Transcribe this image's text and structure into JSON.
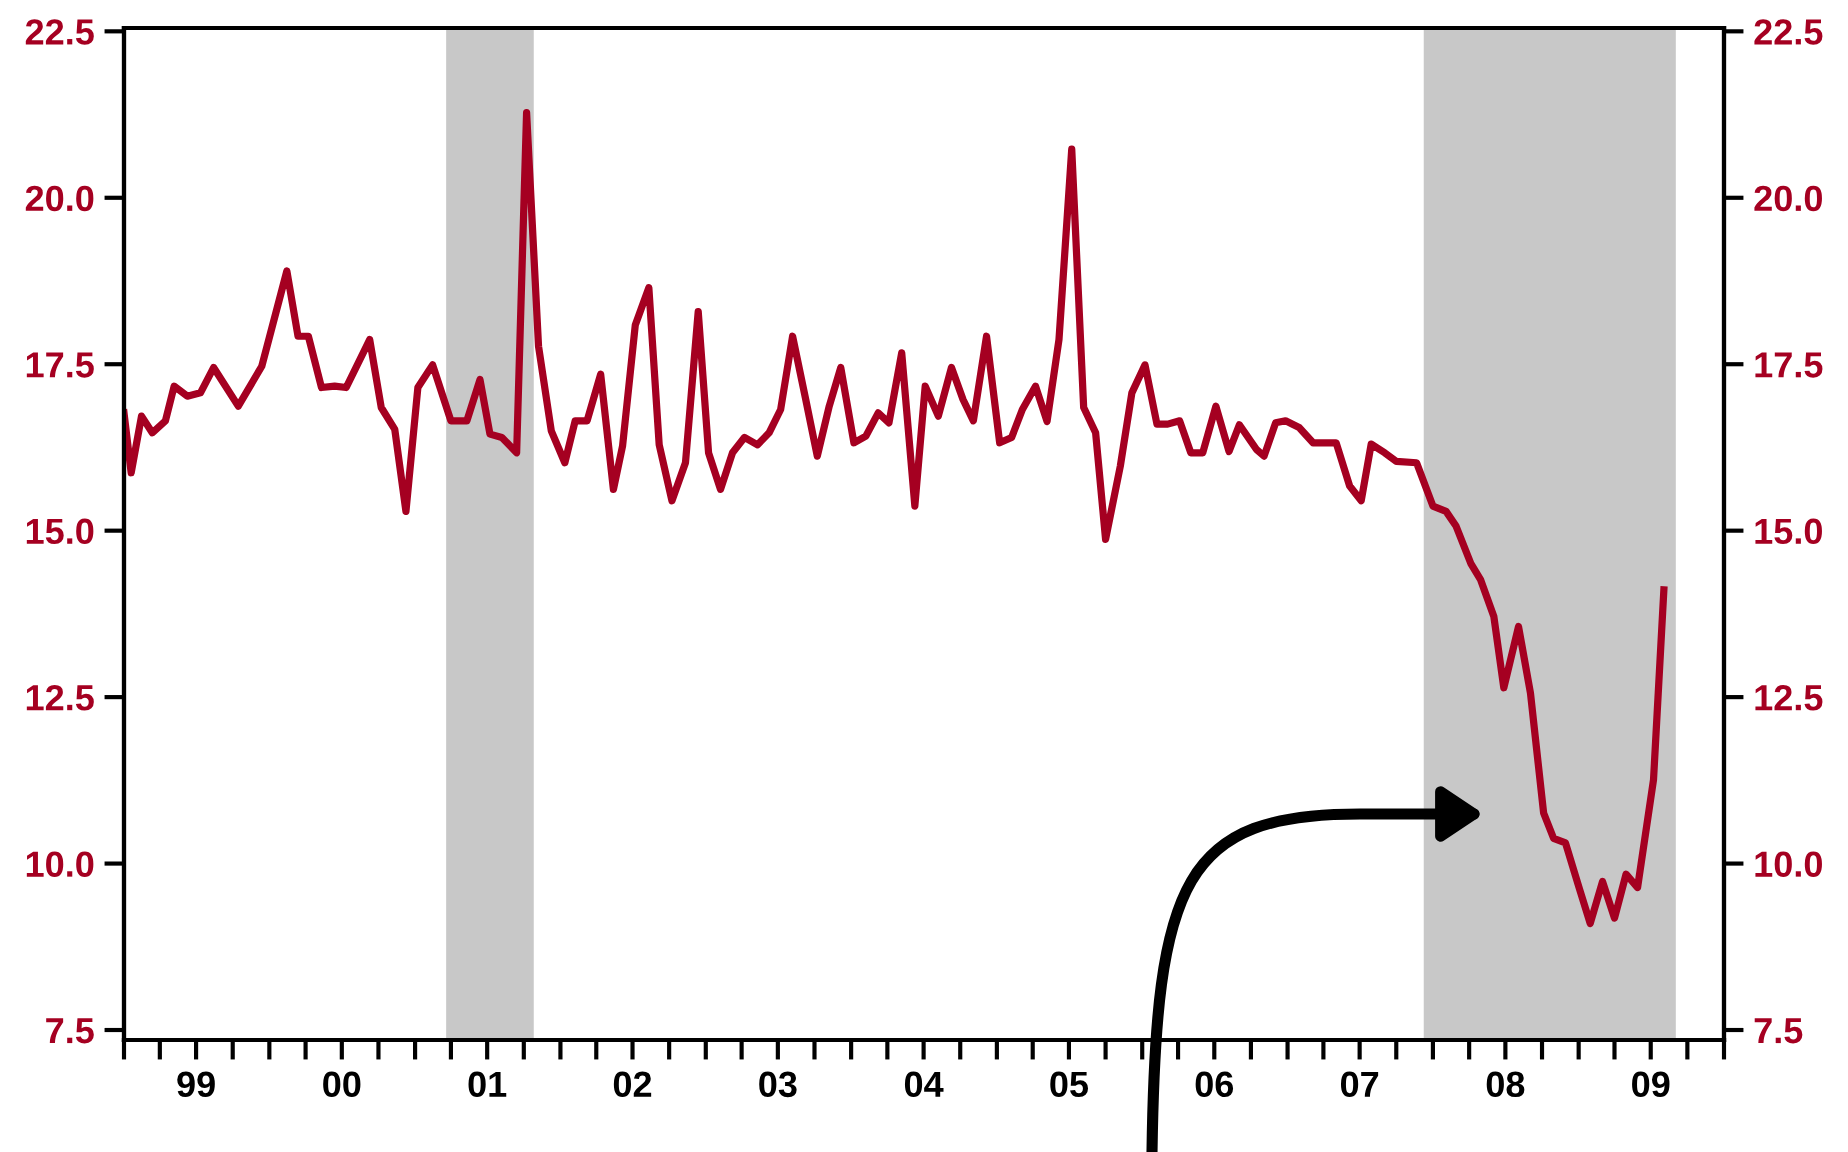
{
  "chart_data": {
    "type": "line",
    "series": [
      {
        "color": "#a50021",
        "x": [
          "1999-01-01",
          "1999-01-19",
          "1999-02-14",
          "1999-03-13",
          "1999-04-15",
          "1999-05-07",
          "1999-06-09",
          "1999-07-12",
          "1999-08-14",
          "1999-10-15",
          "1999-12-13",
          "2000-02-14",
          "2000-03-13",
          "2000-04-08",
          "2000-05-11",
          "2000-06-13",
          "2000-07-12",
          "2000-09-09",
          "2000-10-08",
          "2000-11-11",
          "2000-12-09",
          "2001-01-08",
          "2001-02-14",
          "2001-04-01",
          "2001-05-11",
          "2001-06-13",
          "2001-07-08",
          "2001-08-07",
          "2001-09-13",
          "2001-10-08",
          "2001-11-07",
          "2001-12-09",
          "2002-01-12",
          "2002-02-07",
          "2002-03-09",
          "2002-04-12",
          "2002-05-14",
          "2002-06-06",
          "2002-07-08",
          "2002-08-11",
          "2002-09-06",
          "2002-10-08",
          "2002-11-11",
          "2002-12-13",
          "2003-01-08",
          "2003-02-07",
          "2003-03-09",
          "2003-04-08",
          "2003-05-11",
          "2003-06-09",
          "2003-07-08",
          "2003-08-07",
          "2003-09-09",
          "2003-10-08",
          "2003-11-07",
          "2003-12-06",
          "2004-01-08",
          "2004-02-07",
          "2004-03-09",
          "2004-04-05",
          "2004-05-07",
          "2004-06-09",
          "2004-07-05",
          "2004-08-07",
          "2004-09-09",
          "2004-10-08",
          "2004-11-03",
          "2004-12-06",
          "2005-01-08",
          "2005-02-07",
          "2005-03-06",
          "2005-04-08",
          "2005-05-07",
          "2005-06-06",
          "2005-07-08",
          "2005-08-07",
          "2005-09-06",
          "2005-10-01",
          "2005-11-07",
          "2005-12-06",
          "2006-01-08",
          "2006-02-07",
          "2006-03-06",
          "2006-04-05",
          "2006-05-03",
          "2006-06-02",
          "2006-07-05",
          "2006-08-07",
          "2006-09-02",
          "2006-10-15",
          "2006-11-03",
          "2006-12-02",
          "2006-12-27",
          "2007-01-30",
          "2007-03-06",
          "2007-05-03",
          "2007-06-06",
          "2007-07-05",
          "2007-07-30",
          "2007-09-02",
          "2007-10-01",
          "2007-11-21",
          "2008-01-01",
          "2008-02-03",
          "2008-02-28",
          "2008-04-05",
          "2008-04-30",
          "2008-06-02",
          "2008-06-27",
          "2008-08-03",
          "2008-09-02",
          "2008-10-05",
          "2008-10-30",
          "2008-11-29",
          "2009-01-01",
          "2009-01-30",
          "2009-03-02",
          "2009-04-01",
          "2009-04-30",
          "2009-05-29",
          "2009-07-08",
          "2009-08-03"
        ],
        "values": [
          16.77,
          15.87,
          16.72,
          16.47,
          16.65,
          17.17,
          17.02,
          17.07,
          17.45,
          16.87,
          17.47,
          18.9,
          17.92,
          17.92,
          17.15,
          17.17,
          17.15,
          17.87,
          16.85,
          16.52,
          15.29,
          17.15,
          17.49,
          16.65,
          16.65,
          17.27,
          16.45,
          16.4,
          16.17,
          21.28,
          17.77,
          16.5,
          16.02,
          16.65,
          16.65,
          17.35,
          15.62,
          16.27,
          18.09,
          18.65,
          16.29,
          15.45,
          16.02,
          18.29,
          16.17,
          15.62,
          16.17,
          16.4,
          16.29,
          16.47,
          16.82,
          17.92,
          16.97,
          16.12,
          16.87,
          17.45,
          16.32,
          16.42,
          16.77,
          16.62,
          17.67,
          15.37,
          17.17,
          16.72,
          17.45,
          16.97,
          16.65,
          17.92,
          16.32,
          16.4,
          16.82,
          17.17,
          16.64,
          17.87,
          20.73,
          16.85,
          16.47,
          14.87,
          15.97,
          17.07,
          17.49,
          16.6,
          16.6,
          16.65,
          16.17,
          16.17,
          16.87,
          16.19,
          16.59,
          16.22,
          16.12,
          16.62,
          16.65,
          16.55,
          16.32,
          16.32,
          15.67,
          15.45,
          16.3,
          16.17,
          16.04,
          16.02,
          15.37,
          15.29,
          15.07,
          14.51,
          14.26,
          13.71,
          12.64,
          13.56,
          12.56,
          10.76,
          10.38,
          10.31,
          9.66,
          9.1,
          9.73,
          9.18,
          9.84,
          9.64,
          11.26,
          14.11
        ]
      }
    ],
    "xlim": [
      "1999-01-01",
      "2010-01-01"
    ],
    "xticks": [
      {
        "value": "1999-01-01",
        "label": null
      },
      {
        "value": "1999-04-01",
        "label": null
      },
      {
        "value": "1999-07-01",
        "label": "99"
      },
      {
        "value": "1999-10-01",
        "label": null
      },
      {
        "value": "2000-01-01",
        "label": null
      },
      {
        "value": "2000-04-01",
        "label": null
      },
      {
        "value": "2000-07-01",
        "label": "00"
      },
      {
        "value": "2000-10-01",
        "label": null
      },
      {
        "value": "2001-01-01",
        "label": null
      },
      {
        "value": "2001-04-01",
        "label": null
      },
      {
        "value": "2001-07-01",
        "label": "01"
      },
      {
        "value": "2001-10-01",
        "label": null
      },
      {
        "value": "2002-01-01",
        "label": null
      },
      {
        "value": "2002-04-01",
        "label": null
      },
      {
        "value": "2002-07-01",
        "label": "02"
      },
      {
        "value": "2002-10-01",
        "label": null
      },
      {
        "value": "2003-01-01",
        "label": null
      },
      {
        "value": "2003-04-01",
        "label": null
      },
      {
        "value": "2003-07-01",
        "label": "03"
      },
      {
        "value": "2003-10-01",
        "label": null
      },
      {
        "value": "2004-01-01",
        "label": null
      },
      {
        "value": "2004-04-01",
        "label": null
      },
      {
        "value": "2004-07-01",
        "label": "04"
      },
      {
        "value": "2004-10-01",
        "label": null
      },
      {
        "value": "2005-01-01",
        "label": null
      },
      {
        "value": "2005-04-01",
        "label": null
      },
      {
        "value": "2005-07-01",
        "label": "05"
      },
      {
        "value": "2005-10-01",
        "label": null
      },
      {
        "value": "2006-01-01",
        "label": null
      },
      {
        "value": "2006-04-01",
        "label": null
      },
      {
        "value": "2006-07-01",
        "label": "06"
      },
      {
        "value": "2006-10-01",
        "label": null
      },
      {
        "value": "2007-01-01",
        "label": null
      },
      {
        "value": "2007-04-01",
        "label": null
      },
      {
        "value": "2007-07-01",
        "label": "07"
      },
      {
        "value": "2007-10-01",
        "label": null
      },
      {
        "value": "2008-01-01",
        "label": null
      },
      {
        "value": "2008-04-01",
        "label": null
      },
      {
        "value": "2008-07-01",
        "label": "08"
      },
      {
        "value": "2008-10-01",
        "label": null
      },
      {
        "value": "2009-01-01",
        "label": null
      },
      {
        "value": "2009-04-01",
        "label": null
      },
      {
        "value": "2009-07-01",
        "label": "09"
      },
      {
        "value": "2009-10-01",
        "label": null
      },
      {
        "value": "2010-01-01",
        "label": null
      }
    ],
    "ylim": [
      7.35,
      22.55
    ],
    "yticks": [
      {
        "value": 7.5,
        "label": "7.5"
      },
      {
        "value": 10,
        "label": "10.0"
      },
      {
        "value": 12.5,
        "label": "12.5"
      },
      {
        "value": 15,
        "label": "15.0"
      },
      {
        "value": 17.5,
        "label": "17.5"
      },
      {
        "value": 20,
        "label": "20.0"
      },
      {
        "value": 22.5,
        "label": "22.5"
      }
    ],
    "y2lim": [
      7.35,
      22.55
    ],
    "y2ticks": [
      {
        "value": 7.5,
        "label": "7.5"
      },
      {
        "value": 10,
        "label": "10.0"
      },
      {
        "value": 12.5,
        "label": "12.5"
      },
      {
        "value": 15,
        "label": "15.0"
      },
      {
        "value": 17.5,
        "label": "17.5"
      },
      {
        "value": 20,
        "label": "20.0"
      },
      {
        "value": 22.5,
        "label": "22.5"
      }
    ],
    "bands": [
      {
        "axis": "x",
        "from": "2001-03-20",
        "to": "2001-10-26",
        "color": "#c8c8c8"
      },
      {
        "axis": "x",
        "from": "2007-12-09",
        "to": "2009-09-02",
        "color": "#c8c8c8"
      }
    ],
    "grid": false
  }
}
